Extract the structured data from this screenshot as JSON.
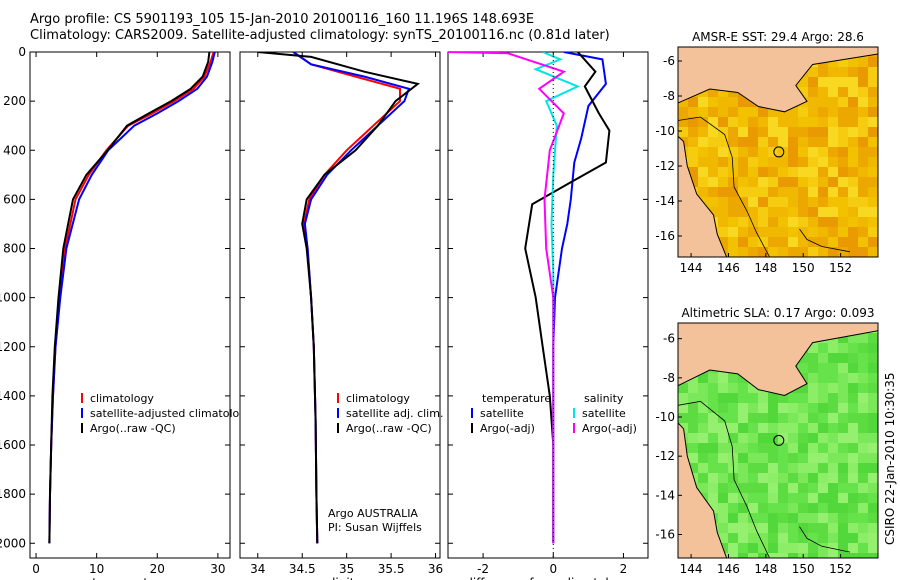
{
  "header": {
    "line1": "Argo profile: CS 5901193_105 15-Jan-2010 20100116_160 11.196S 148.693E",
    "line2": "Climatology: CARS2009. Satellite-adjusted climatology: synTS_20100116.nc (0.81d later)"
  },
  "colors": {
    "climatology": "#ff0000",
    "satellite": "#0000ff",
    "argo": "#000000",
    "salinity_satellite": "#00e5e5",
    "salinity_argo": "#ff00ff",
    "land": "#f4c29a"
  },
  "chart_data": [
    {
      "type": "line",
      "id": "temperature_profile",
      "xlabel": "temperature",
      "ylabel": "",
      "xlim": [
        -1,
        32
      ],
      "ylim": [
        2060,
        0
      ],
      "xticks": [
        0,
        10,
        20,
        30
      ],
      "yticks": [
        0,
        200,
        400,
        600,
        800,
        1000,
        1200,
        1400,
        1600,
        1800,
        2000
      ],
      "legend": [
        "climatology",
        "satellite-adjusted climatology",
        "Argo(..raw -QC)"
      ],
      "series": [
        {
          "name": "climatology",
          "color": "red",
          "x": [
            29.3,
            28.8,
            27.8,
            26.0,
            22.8,
            19.2,
            15.2,
            11.6,
            8.7,
            6.5,
            4.8,
            3.9,
            3.2,
            2.8,
            2.5,
            2.3,
            2.2
          ],
          "y": [
            0,
            40,
            100,
            150,
            200,
            250,
            300,
            400,
            500,
            600,
            800,
            1000,
            1200,
            1400,
            1600,
            1800,
            2000
          ]
        },
        {
          "name": "satellite",
          "color": "blue",
          "x": [
            29.5,
            29.1,
            28.2,
            26.6,
            23.5,
            20.0,
            16.2,
            11.9,
            9.2,
            7.1,
            5.0,
            4.0,
            3.2,
            2.8,
            2.5,
            2.3,
            2.2
          ],
          "y": [
            0,
            40,
            100,
            150,
            200,
            250,
            300,
            400,
            500,
            600,
            800,
            1000,
            1200,
            1400,
            1600,
            1800,
            2000
          ]
        },
        {
          "name": "argo",
          "color": "black",
          "x": [
            28.6,
            28.4,
            27.5,
            25.5,
            22.3,
            18.6,
            15.0,
            11.8,
            8.3,
            6.1,
            4.5,
            3.7,
            3.1,
            2.7,
            2.5,
            2.3,
            2.2
          ],
          "y": [
            0,
            40,
            100,
            150,
            200,
            250,
            300,
            400,
            500,
            600,
            800,
            1000,
            1200,
            1400,
            1600,
            1800,
            2000
          ]
        }
      ]
    },
    {
      "type": "line",
      "id": "salinity_profile",
      "xlabel": "salinity",
      "xlim": [
        33.8,
        36.05
      ],
      "ylim": [
        2060,
        0
      ],
      "xticks": [
        34,
        34.5,
        35,
        35.5,
        36
      ],
      "legend": [
        "climatology",
        "satellite adj. clim.",
        "Argo(..raw -QC)"
      ],
      "annotation": [
        "Argo AUSTRALIA",
        "PI: Susan Wijffels"
      ],
      "series": [
        {
          "name": "climatology",
          "color": "red",
          "x": [
            34.4,
            34.6,
            35.1,
            35.6,
            35.6,
            35.3,
            35.0,
            34.75,
            34.58,
            34.52,
            34.56,
            34.6,
            34.63,
            34.65,
            34.66,
            34.67
          ],
          "y": [
            0,
            50,
            100,
            150,
            200,
            300,
            400,
            500,
            600,
            700,
            800,
            1000,
            1200,
            1500,
            1800,
            2000
          ]
        },
        {
          "name": "satellite",
          "color": "blue",
          "x": [
            34.4,
            34.6,
            35.2,
            35.7,
            35.65,
            35.35,
            35.05,
            34.78,
            34.6,
            34.53,
            34.56,
            34.6,
            34.63,
            34.65,
            34.66,
            34.67
          ],
          "y": [
            0,
            50,
            100,
            150,
            200,
            300,
            400,
            500,
            600,
            700,
            800,
            1000,
            1200,
            1500,
            1800,
            2000
          ]
        },
        {
          "name": "argo",
          "color": "black",
          "x": [
            34.0,
            34.6,
            35.2,
            35.8,
            35.55,
            35.35,
            35.1,
            34.75,
            34.55,
            34.5,
            34.55,
            34.6,
            34.63,
            34.65,
            34.66,
            34.67
          ],
          "y": [
            0,
            20,
            80,
            130,
            200,
            300,
            400,
            500,
            600,
            700,
            800,
            1000,
            1200,
            1500,
            1800,
            2000
          ]
        }
      ]
    },
    {
      "type": "line",
      "id": "difference_profile",
      "xlabel": "difference from climatology",
      "xlim": [
        -3,
        2.7
      ],
      "ylim": [
        2060,
        0
      ],
      "xticks": [
        -2,
        0,
        2
      ],
      "legend_left": {
        "heading": "temperature",
        "items": [
          "satellite",
          "Argo(-adj)"
        ]
      },
      "legend_right": {
        "heading": "salinity",
        "items": [
          "satellite",
          "Argo(-adj)"
        ]
      },
      "series": [
        {
          "name": "temperature satellite",
          "color": "blue",
          "x": [
            0.3,
            1.4,
            1.5,
            1.0,
            0.8,
            0.6,
            0.5,
            0.4,
            0.25,
            0.05,
            0.0,
            0.0,
            0.0,
            0.0,
            0.0
          ],
          "y": [
            0,
            30,
            130,
            220,
            350,
            450,
            600,
            700,
            800,
            1000,
            1200,
            1400,
            1600,
            1800,
            2000
          ]
        },
        {
          "name": "temperature argo",
          "color": "black",
          "x": [
            0.7,
            1.2,
            0.9,
            1.3,
            1.6,
            1.5,
            0.5,
            -0.6,
            -0.8,
            -0.5,
            -0.3,
            -0.1,
            0.0,
            0.0,
            0.0
          ],
          "y": [
            0,
            80,
            140,
            250,
            320,
            450,
            530,
            620,
            800,
            1000,
            1200,
            1400,
            1600,
            1800,
            2000
          ]
        },
        {
          "name": "salinity satellite",
          "color": "cyan",
          "x": [
            -0.3,
            0.2,
            -0.5,
            0.7,
            -0.2,
            0.1,
            0.0,
            -0.05,
            0.0,
            0.0,
            0.0,
            0.0,
            0.0
          ],
          "y": [
            0,
            30,
            70,
            140,
            200,
            300,
            500,
            700,
            900,
            1200,
            1500,
            1800,
            2000
          ]
        },
        {
          "name": "salinity argo",
          "color": "magenta",
          "x": [
            -3.0,
            -1.3,
            0.3,
            -0.4,
            0.3,
            -0.1,
            -0.25,
            -0.2,
            0.0,
            0.0,
            0.0,
            0.0
          ],
          "y": [
            0,
            5,
            80,
            150,
            250,
            400,
            600,
            800,
            1000,
            1300,
            1600,
            2000
          ]
        }
      ]
    },
    {
      "type": "heatmap",
      "id": "sst_map",
      "title": "AMSR-E SST: 29.4 Argo: 28.6",
      "xlim": [
        143.3,
        154.0
      ],
      "ylim": [
        -17.2,
        -5.2
      ],
      "xticks": [
        144,
        146,
        148,
        150,
        152
      ],
      "yticks": [
        -6,
        -8,
        -10,
        -12,
        -14,
        -16
      ],
      "marker": {
        "lon": 148.693,
        "lat": -11.196
      }
    },
    {
      "type": "heatmap",
      "id": "sla_map",
      "title": "Altimetric SLA: 0.17 Argo: 0.093",
      "xlim": [
        143.3,
        154.0
      ],
      "ylim": [
        -17.2,
        -5.2
      ],
      "xticks": [
        144,
        146,
        148,
        150,
        152
      ],
      "yticks": [
        -6,
        -8,
        -10,
        -12,
        -14,
        -16
      ],
      "marker": {
        "lon": 148.693,
        "lat": -11.196
      }
    }
  ],
  "footer": {
    "credit": "CSIRO 22-Jan-2010 10:30:35"
  }
}
